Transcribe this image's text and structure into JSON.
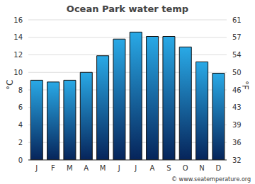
{
  "chart_data": {
    "type": "bar",
    "title": "Ocean Park water temp",
    "ylabel": "°C",
    "y2label": "°F",
    "categories": [
      "J",
      "F",
      "M",
      "A",
      "M",
      "J",
      "J",
      "A",
      "S",
      "O",
      "N",
      "D"
    ],
    "values": [
      9.1,
      8.9,
      9.1,
      10.0,
      11.9,
      13.8,
      14.6,
      14.1,
      14.1,
      12.9,
      11.2,
      9.9
    ],
    "color": "#29a9e6",
    "ylim": [
      0,
      16
    ],
    "yticks": [
      0,
      2,
      4,
      6,
      8,
      10,
      12,
      14,
      16
    ],
    "y2lim": [
      32,
      60.8
    ],
    "y2ticks": [
      32,
      {
        "value": 35.6,
        "label": "36"
      },
      {
        "value": 39.2,
        "label": "39"
      },
      {
        "value": 42.8,
        "label": "43"
      },
      {
        "value": 46.4,
        "label": "46"
      },
      50,
      {
        "value": 53.6,
        "label": "54"
      },
      {
        "value": 57.2,
        "label": "57"
      },
      {
        "value": 60.8,
        "label": "61"
      }
    ],
    "grid": true,
    "annotations": [
      "© www.seatemperature.org"
    ]
  }
}
